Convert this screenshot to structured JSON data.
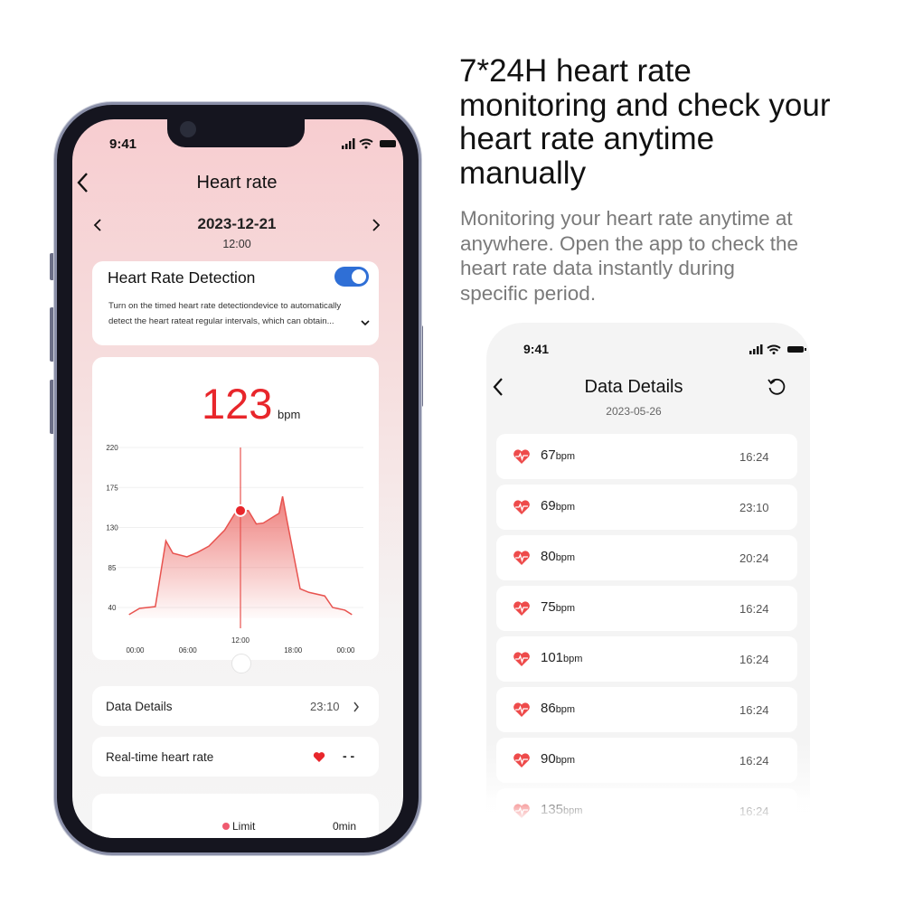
{
  "marketing": {
    "headline_lines": [
      "7*24H heart rate",
      "monitoring and check your",
      "heart rate anytime",
      "manually"
    ],
    "sub_lines": [
      "Monitoring your heart rate anytime at",
      "anywhere. Open the app to check the",
      "heart rate data instantly during",
      "specific period."
    ]
  },
  "left_phone": {
    "status_time": "9:41",
    "title": "Heart rate",
    "date": "2023-12-21",
    "time": "12:00",
    "detection": {
      "title": "Heart Rate Detection",
      "enabled": true,
      "desc_lines": [
        "Turn on the timed heart rate detectiondevice to automatically",
        "detect the heart rateat regular intervals, which can obtain..."
      ]
    },
    "current_value": "123",
    "unit": "bpm",
    "chart": {
      "type": "area",
      "y_ticks": [
        "220",
        "175",
        "130",
        "85",
        "40"
      ],
      "y_range": [
        40,
        220
      ],
      "x_ticks": [
        "00:00",
        "06:00",
        "12:00",
        "18:00",
        "00:00"
      ],
      "selected_label": "12:00",
      "selected_hour": 12,
      "points_hour": [
        -0.7,
        0.5,
        2.3,
        3.5,
        4.3,
        5.9,
        7.1,
        8.4,
        10.2,
        11.5,
        12,
        12.9,
        13.8,
        14.6,
        16.4,
        16.8,
        17.3,
        18.8,
        19.8,
        21.6,
        22.5,
        23.9,
        24.7
      ],
      "points_bpm": [
        32,
        39,
        41,
        115,
        101,
        97,
        102,
        109,
        127,
        148,
        149,
        149,
        134,
        135,
        146,
        165,
        138,
        61,
        57,
        53,
        40,
        37,
        32
      ],
      "color": "#e8534f"
    },
    "data_details": {
      "label": "Data Details",
      "time": "23:10"
    },
    "realtime": {
      "label": "Real-time heart rate",
      "value": "- -"
    },
    "limit": {
      "label": "Limit",
      "value": "0min"
    }
  },
  "right_phone": {
    "status_time": "9:41",
    "title": "Data Details",
    "date": "2023-05-26",
    "items": [
      {
        "value": "67",
        "unit": "bpm",
        "time": "16:24"
      },
      {
        "value": "69",
        "unit": "bpm",
        "time": "23:10"
      },
      {
        "value": "80",
        "unit": "bpm",
        "time": "20:24"
      },
      {
        "value": "75",
        "unit": "bpm",
        "time": "16:24"
      },
      {
        "value": "101",
        "unit": "bpm",
        "time": "16:24"
      },
      {
        "value": "86",
        "unit": "bpm",
        "time": "16:24"
      },
      {
        "value": "90",
        "unit": "bpm",
        "time": "16:24"
      },
      {
        "value": "135",
        "unit": "bpm",
        "time": "16:24"
      }
    ]
  },
  "colors": {
    "accent_red": "#e8262b",
    "toggle_blue": "#2f6fd6",
    "heart_red": "#ee4b4b"
  }
}
